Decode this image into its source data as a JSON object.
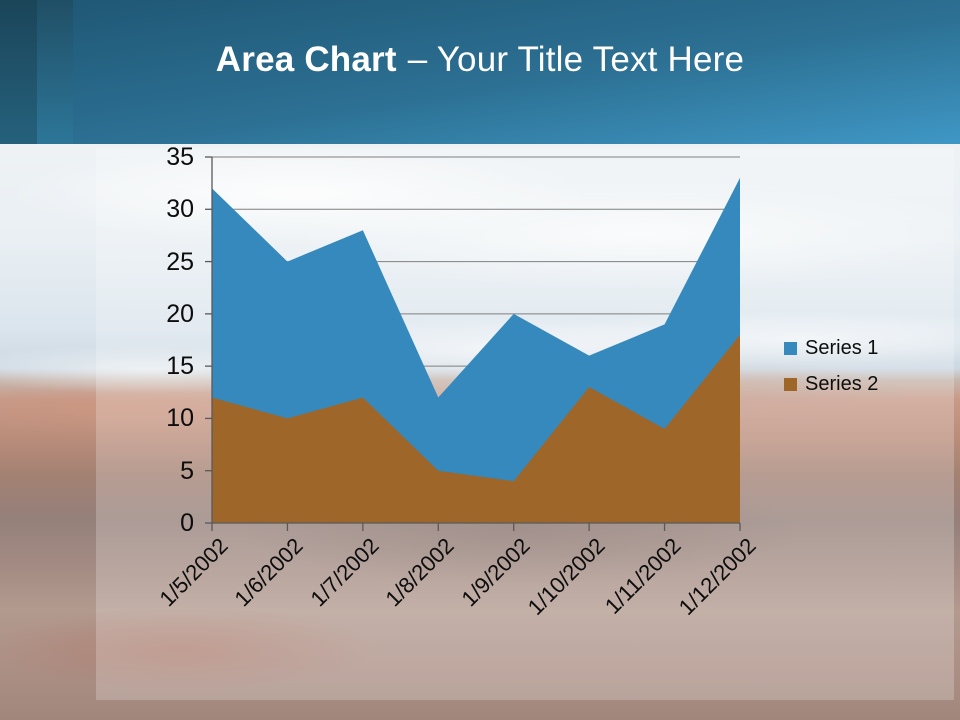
{
  "slide": {
    "title_bold": "Area Chart",
    "title_rest": "– Your Title Text Here"
  },
  "chart_data": {
    "type": "area",
    "title": "",
    "xlabel": "",
    "ylabel": "",
    "categories": [
      "1/5/2002",
      "1/6/2002",
      "1/7/2002",
      "1/8/2002",
      "1/9/2002",
      "1/10/2002",
      "1/11/2002",
      "1/12/2002"
    ],
    "series": [
      {
        "name": "Series 1",
        "color": "#3589BC",
        "values": [
          32,
          25,
          28,
          12,
          20,
          16,
          19,
          33
        ]
      },
      {
        "name": "Series 2",
        "color": "#9F662A",
        "values": [
          12,
          10,
          12,
          5,
          4,
          13,
          9,
          18
        ]
      }
    ],
    "ylim": [
      0,
      35
    ],
    "ytick_step": 5,
    "grid": true,
    "grid_color": "#7f7f7f",
    "axis_color": "#595959",
    "legend_position": "right",
    "x_label_rotation_deg": -45
  }
}
